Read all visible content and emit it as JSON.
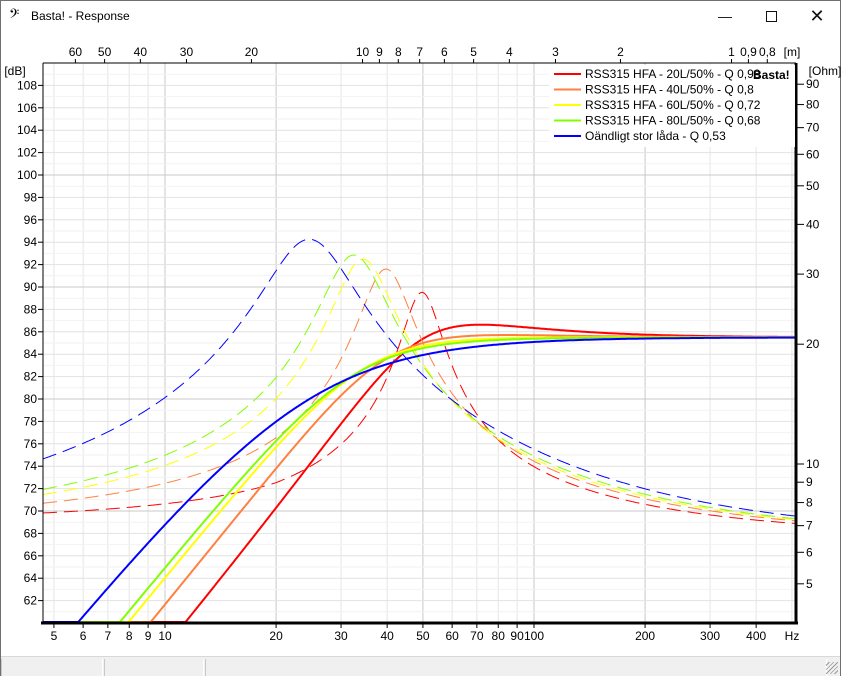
{
  "window": {
    "title": "Basta! - Response",
    "icon": "bass-clef-icon",
    "minimize": "minimize-icon",
    "maximize": "maximize-icon",
    "close": "close-icon"
  },
  "watermark": "Basta!",
  "chart_data": {
    "type": "line",
    "title": "Response",
    "xlabel": "Hz",
    "ylabel": "[dB]",
    "y2label": "[Ohm]",
    "x2label": "[m]",
    "xscale": "log",
    "xlim": [
      4.66,
      513
    ],
    "ylim": [
      60,
      110
    ],
    "x_ticks": [
      "5",
      "6",
      "7",
      "8",
      "9",
      "10",
      "20",
      "30",
      "40",
      "50",
      "60",
      "70",
      "80",
      "90",
      "100",
      "200",
      "300",
      "400"
    ],
    "x_tick_values": [
      5,
      6,
      7,
      8,
      9,
      10,
      20,
      30,
      40,
      50,
      60,
      70,
      80,
      90,
      100,
      200,
      300,
      400
    ],
    "y_ticks": [
      62,
      64,
      66,
      68,
      70,
      72,
      74,
      76,
      78,
      80,
      82,
      84,
      86,
      88,
      90,
      92,
      94,
      96,
      98,
      100,
      102,
      104,
      106,
      108
    ],
    "y2_ticks": [
      "90",
      "80",
      "70",
      "60",
      "50",
      "40",
      "30",
      "20",
      "10",
      "9",
      "8",
      "7",
      "6",
      "5"
    ],
    "y2_tick_values": [
      90,
      80,
      70,
      60,
      50,
      40,
      30,
      20,
      10,
      9,
      8,
      7,
      6,
      5
    ],
    "x2_ticks": [
      "60",
      "50",
      "40",
      "30",
      "20",
      "10",
      "9",
      "8",
      "7",
      "6",
      "5",
      "4",
      "3",
      "2",
      "1",
      "0,9",
      "0,8"
    ],
    "x2_tick_values": [
      60,
      50,
      40,
      30,
      20,
      10,
      9,
      8,
      7,
      6,
      5,
      4,
      3,
      2,
      1,
      0.9,
      0.8
    ],
    "passband_db": 85.5,
    "legend_position": "top-right",
    "grid": true,
    "series": [
      {
        "name": "RSS315 HFA - 20L/50% - Q 0,98",
        "color": "#ff0000",
        "fc_hz": 49.7,
        "q": 0.98,
        "impedance_peak_ohm": 27,
        "impedance_q": 9
      },
      {
        "name": "RSS315 HFA - 40L/50% - Q 0,8",
        "color": "#ff8040",
        "fc_hz": 39.7,
        "q": 0.8,
        "impedance_peak_ohm": 30.9,
        "impedance_q": 7
      },
      {
        "name": "RSS315 HFA - 60L/50% - Q 0,72",
        "color": "#ffff00",
        "fc_hz": 34.4,
        "q": 0.72,
        "impedance_peak_ohm": 32.7,
        "impedance_q": 6
      },
      {
        "name": "RSS315 HFA - 80L/50% - Q 0,68",
        "color": "#80ff00",
        "fc_hz": 32.5,
        "q": 0.68,
        "impedance_peak_ohm": 33.5,
        "impedance_q": 5.5
      },
      {
        "name": "Oändligt stor låda - Q 0,53",
        "color": "#0000ff",
        "fc_hz": 24.6,
        "q": 0.53,
        "impedance_peak_ohm": 36.7,
        "impedance_q": 4
      }
    ],
    "impedance_re_ohm": 6.6
  }
}
